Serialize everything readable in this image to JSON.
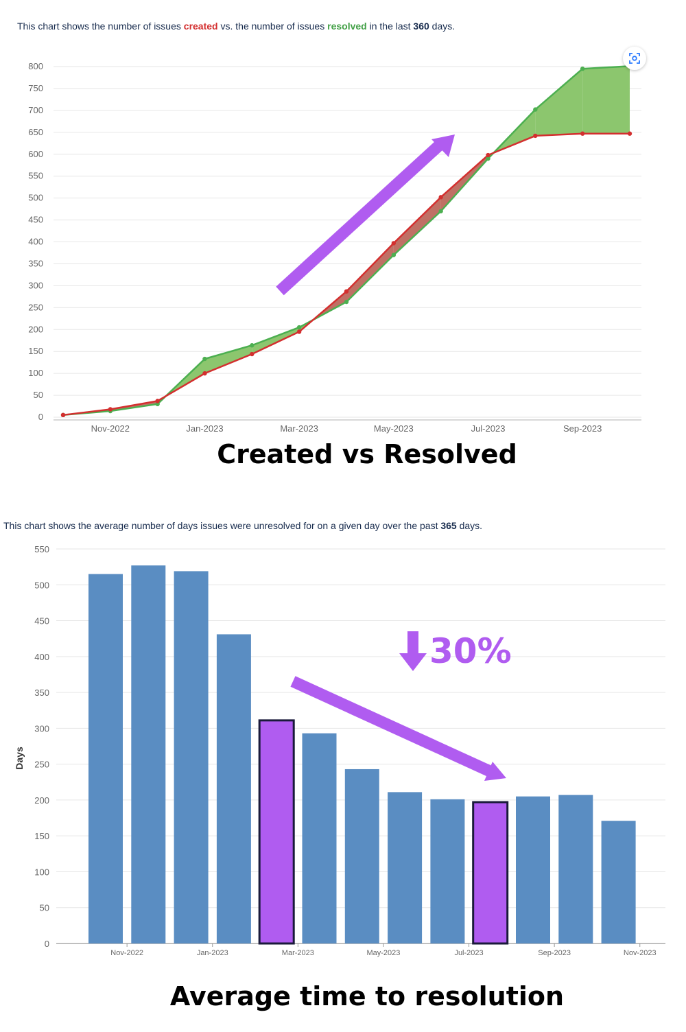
{
  "chart1": {
    "description": {
      "prefix": "This chart shows the number of issues ",
      "created_word": "created",
      "middle": " vs. the number of issues ",
      "resolved_word": "resolved",
      "middle2": " in the last ",
      "days": "360",
      "suffix": " days."
    },
    "caption": "Created vs Resolved",
    "focus_icon": "focus-view-icon"
  },
  "chart2": {
    "description": {
      "prefix": "This chart shows the average number of days issues were unresolved for on a given day over the past ",
      "days": "365",
      "suffix": " days."
    },
    "caption": "Average time to resolution",
    "annotation": "30%"
  },
  "colors": {
    "created": "#d32f2f",
    "resolved": "#4caf50",
    "resolved_fill": "#8cc66e",
    "created_fill": "#b5574a",
    "bar": "#5a8dc2",
    "highlight": "#b05cf0",
    "arrow": "#b05cf0"
  },
  "chart_data": [
    {
      "type": "line",
      "title": "Created vs Resolved",
      "x": [
        "2022-10",
        "2022-11",
        "2022-12",
        "2023-01",
        "2023-02",
        "2023-03",
        "2023-04",
        "2023-05",
        "2023-06",
        "2023-07",
        "2023-08",
        "2023-09",
        "2023-10"
      ],
      "x_tick_labels": [
        "Nov-2022",
        "Jan-2023",
        "Mar-2023",
        "May-2023",
        "Jul-2023",
        "Sep-2023"
      ],
      "x_tick_positions": [
        1,
        3,
        5,
        7,
        9,
        11
      ],
      "series": [
        {
          "name": "created",
          "values": [
            5,
            18,
            37,
            100,
            144,
            195,
            287,
            397,
            502,
            598,
            642,
            647,
            647
          ]
        },
        {
          "name": "resolved",
          "values": [
            5,
            14,
            30,
            133,
            164,
            205,
            263,
            370,
            470,
            590,
            702,
            795,
            801
          ]
        }
      ],
      "ylim": [
        0,
        800
      ],
      "yticks": [
        0,
        50,
        100,
        150,
        200,
        250,
        300,
        350,
        400,
        450,
        500,
        550,
        600,
        650,
        700,
        750,
        800
      ],
      "xlabel": "",
      "ylabel": "",
      "grid": true
    },
    {
      "type": "bar",
      "title": "Average time to resolution",
      "categories": [
        "2022-10",
        "2022-11",
        "2022-12",
        "2023-01",
        "2023-02",
        "2023-03",
        "2023-04",
        "2023-05",
        "2023-06",
        "2023-07",
        "2023-08",
        "2023-09",
        "2023-10"
      ],
      "values": [
        515,
        527,
        519,
        431,
        311,
        293,
        243,
        211,
        201,
        197,
        205,
        207,
        171
      ],
      "highlighted": [
        4,
        9
      ],
      "x_tick_labels": [
        "Nov-2022",
        "Jan-2023",
        "Mar-2023",
        "May-2023",
        "Jul-2023",
        "Sep-2023",
        "Nov-2023"
      ],
      "x_tick_positions": [
        1,
        3,
        5,
        7,
        9,
        11,
        13
      ],
      "ylim": [
        0,
        550
      ],
      "yticks": [
        0,
        50,
        100,
        150,
        200,
        250,
        300,
        350,
        400,
        450,
        500,
        550
      ],
      "xlabel": "",
      "ylabel": "Days",
      "grid": true
    }
  ]
}
